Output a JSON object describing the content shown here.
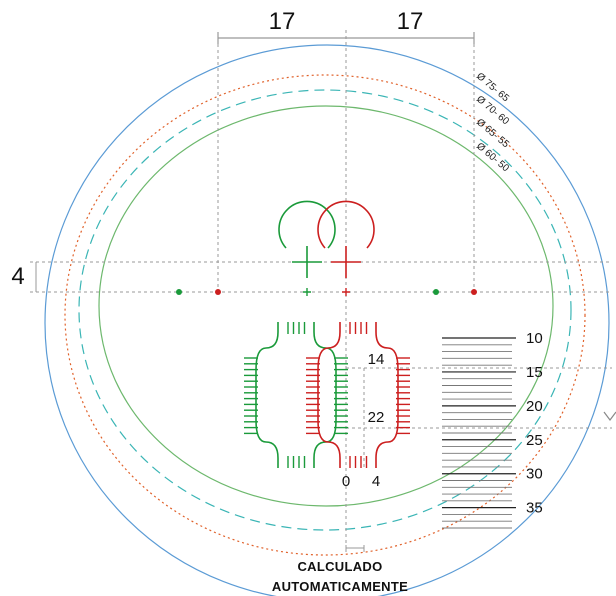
{
  "dimensions": {
    "left_width": "17",
    "right_width": "17",
    "vertical_offset": "4",
    "inner_top": "14",
    "inner_bottom": "22",
    "bottom_zero": "0",
    "bottom_four": "4"
  },
  "rings": [
    {
      "label": "Ø 75- 65",
      "color": "#5b9bd5",
      "style": "solid"
    },
    {
      "label": "Ø 70- 60",
      "color": "#e0612a",
      "style": "dotted"
    },
    {
      "label": "Ø 65- 55",
      "color": "#3ab5b5",
      "style": "dashed"
    },
    {
      "label": "Ø 60- 50",
      "color": "#6db86d",
      "style": "solid"
    }
  ],
  "scale": {
    "labels": [
      "10",
      "15",
      "20",
      "25",
      "30",
      "35"
    ]
  },
  "note": {
    "line1": "CALCULADO",
    "line2": "AUTOMATICAMENTE"
  },
  "colors": {
    "green": "#1a9a3a",
    "red": "#cc1f1f",
    "guide": "#888888"
  }
}
